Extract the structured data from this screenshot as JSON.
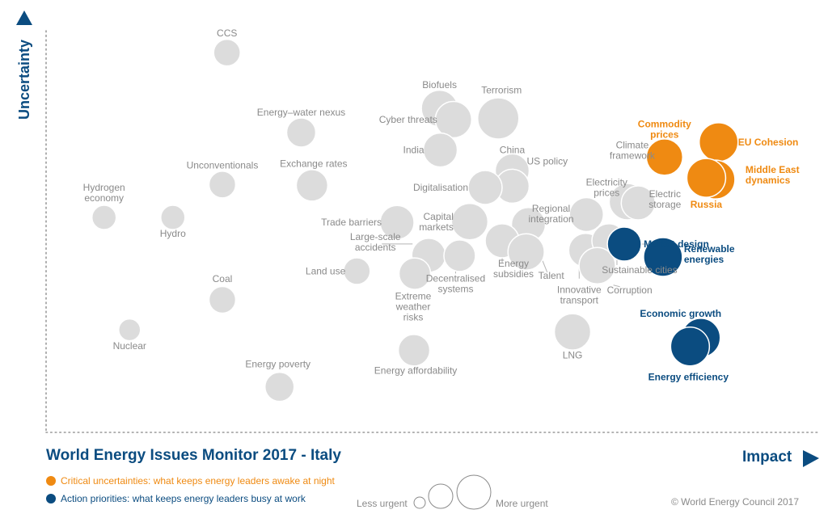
{
  "colors": {
    "critical": "#ef8a12",
    "action": "#0b4c80",
    "other": "#dcdcdc",
    "other_text": "#8a8a8a",
    "axis": "#0b4c80"
  },
  "title": "World Energy Issues Monitor 2017 - Italy",
  "y_axis_label": "Uncertainty",
  "x_axis_label": "Impact",
  "legend": {
    "critical": "Critical uncertainties: what keeps energy leaders awake at night",
    "action": "Action priorities: what keeps energy leaders busy at work",
    "less_urgent": "Less urgent",
    "more_urgent": "More urgent"
  },
  "copyright": "© World Energy Council 2017",
  "chart_data": {
    "type": "scatter",
    "title": "World Energy Issues Monitor 2017 - Italy",
    "xlabel": "Impact",
    "ylabel": "Uncertainty",
    "xlim": [
      0,
      1
    ],
    "ylim": [
      0,
      1
    ],
    "grid": false,
    "point_size_meaning": "urgency",
    "categories": [
      "Critical uncertainties: what keeps energy leaders awake at night",
      "Action priorities: what keeps energy leaders busy at work",
      "other"
    ],
    "points": [
      {
        "label": "CCS",
        "x": 0.234,
        "y": 0.893,
        "size": 0.35,
        "group": "other"
      },
      {
        "label": "Biofuels",
        "x": 0.509,
        "y": 0.759,
        "size": 0.55,
        "group": "other"
      },
      {
        "label": "Terrorism",
        "x": 0.585,
        "y": 0.735,
        "size": 0.65,
        "group": "other"
      },
      {
        "label": "Cyber threats",
        "x": 0.527,
        "y": 0.732,
        "size": 0.55,
        "group": "other"
      },
      {
        "label": "Energy–water nexus",
        "x": 0.33,
        "y": 0.701,
        "size": 0.4,
        "group": "other"
      },
      {
        "label": "India",
        "x": 0.51,
        "y": 0.659,
        "size": 0.5,
        "group": "other"
      },
      {
        "label": "China",
        "x": 0.603,
        "y": 0.609,
        "size": 0.5,
        "group": "other"
      },
      {
        "label": "US policy",
        "x": 0.603,
        "y": 0.572,
        "size": 0.5,
        "group": "other"
      },
      {
        "label": "Unconventionals",
        "x": 0.228,
        "y": 0.576,
        "size": 0.35,
        "group": "other"
      },
      {
        "label": "Exchange rates",
        "x": 0.344,
        "y": 0.574,
        "size": 0.45,
        "group": "other"
      },
      {
        "label": "Digitalisation",
        "x": 0.568,
        "y": 0.569,
        "size": 0.5,
        "group": "other"
      },
      {
        "label": "Regional integration",
        "x": 0.624,
        "y": 0.48,
        "size": 0.5,
        "group": "other"
      },
      {
        "label": "Hydrogen economy",
        "x": 0.075,
        "y": 0.497,
        "size": 0.3,
        "group": "other"
      },
      {
        "label": "Hydro",
        "x": 0.164,
        "y": 0.497,
        "size": 0.3,
        "group": "other"
      },
      {
        "label": "Trade barriers",
        "x": 0.454,
        "y": 0.485,
        "size": 0.5,
        "group": "other"
      },
      {
        "label": "Capital markets",
        "x": 0.548,
        "y": 0.487,
        "size": 0.55,
        "group": "other"
      },
      {
        "label": "Electricity prices",
        "x": 0.699,
        "y": 0.504,
        "size": 0.5,
        "group": "other"
      },
      {
        "label": "Climate framework",
        "x": 0.752,
        "y": 0.535,
        "size": 0.55,
        "group": "other"
      },
      {
        "label": "Electric storage",
        "x": 0.766,
        "y": 0.532,
        "size": 0.5,
        "group": "other"
      },
      {
        "label": "Commodity prices",
        "x": 0.8,
        "y": 0.642,
        "size": 0.55,
        "group": "critical"
      },
      {
        "label": "EU Cohesion",
        "x": 0.87,
        "y": 0.678,
        "size": 0.6,
        "group": "critical"
      },
      {
        "label": "Middle East dynamics",
        "x": 0.866,
        "y": 0.588,
        "size": 0.6,
        "group": "critical"
      },
      {
        "label": "Russia",
        "x": 0.854,
        "y": 0.592,
        "size": 0.6,
        "group": "critical"
      },
      {
        "label": "Market design",
        "x": 0.748,
        "y": 0.433,
        "size": 0.5,
        "group": "action"
      },
      {
        "label": "Renewable energies",
        "x": 0.798,
        "y": 0.402,
        "size": 0.6,
        "group": "action"
      },
      {
        "label": "Large-scale accidents",
        "x": 0.495,
        "y": 0.406,
        "size": 0.5,
        "group": "other"
      },
      {
        "label": "Decentralised systems",
        "x": 0.535,
        "y": 0.405,
        "size": 0.45,
        "group": "other"
      },
      {
        "label": "Land use",
        "x": 0.402,
        "y": 0.368,
        "size": 0.35,
        "group": "other"
      },
      {
        "label": "Energy subsidies",
        "x": 0.59,
        "y": 0.441,
        "size": 0.5,
        "group": "other"
      },
      {
        "label": "Talent",
        "x": 0.621,
        "y": 0.414,
        "size": 0.55,
        "group": "other"
      },
      {
        "label": "Innovative transport",
        "x": 0.698,
        "y": 0.418,
        "size": 0.5,
        "group": "other"
      },
      {
        "label": "Sustainable cities",
        "x": 0.728,
        "y": 0.441,
        "size": 0.5,
        "group": "other"
      },
      {
        "label": "Corruption",
        "x": 0.713,
        "y": 0.381,
        "size": 0.55,
        "group": "other"
      },
      {
        "label": "Extreme weather risks",
        "x": 0.477,
        "y": 0.362,
        "size": 0.45,
        "group": "other"
      },
      {
        "label": "Coal",
        "x": 0.228,
        "y": 0.299,
        "size": 0.35,
        "group": "other"
      },
      {
        "label": "Nuclear",
        "x": 0.108,
        "y": 0.227,
        "size": 0.25,
        "group": "other"
      },
      {
        "label": "LNG",
        "x": 0.681,
        "y": 0.222,
        "size": 0.55,
        "group": "other"
      },
      {
        "label": "Economic growth",
        "x": 0.847,
        "y": 0.208,
        "size": 0.6,
        "group": "action"
      },
      {
        "label": "Energy efficiency",
        "x": 0.833,
        "y": 0.187,
        "size": 0.6,
        "group": "action"
      },
      {
        "label": "Energy affordability",
        "x": 0.476,
        "y": 0.178,
        "size": 0.45,
        "group": "other"
      },
      {
        "label": "Energy poverty",
        "x": 0.302,
        "y": 0.09,
        "size": 0.4,
        "group": "other"
      }
    ]
  }
}
